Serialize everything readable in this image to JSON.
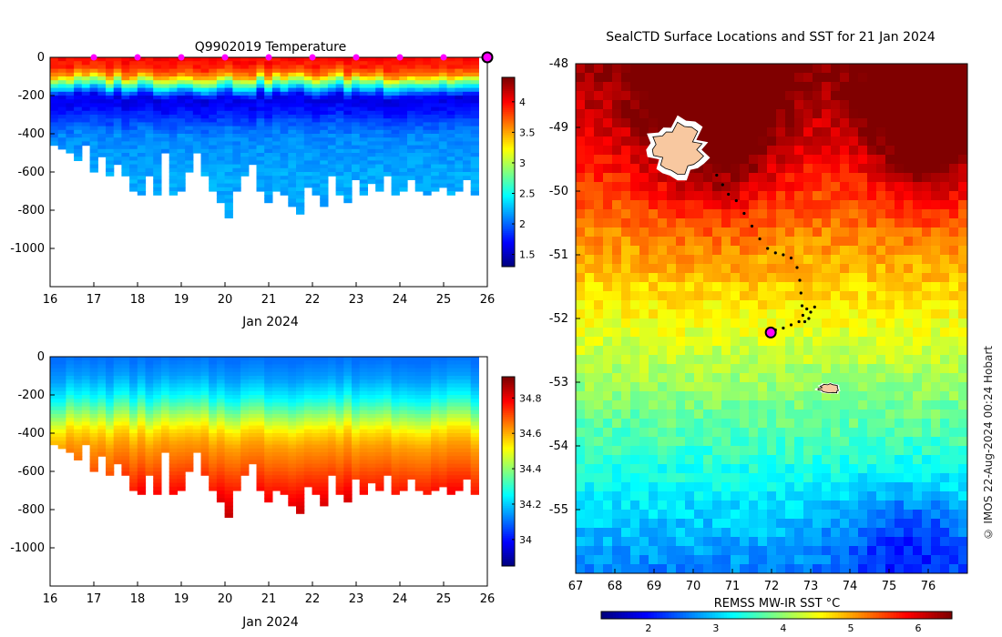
{
  "chart_data": [
    {
      "id": "temperature",
      "type": "heatmap",
      "title": "Q9902019  Temperature",
      "xlabel": "Jan 2024",
      "ylabel": "",
      "xlim": [
        16,
        26
      ],
      "ylim": [
        -1200,
        0
      ],
      "xticks": [
        "16",
        "17",
        "18",
        "19",
        "20",
        "21",
        "22",
        "23",
        "24",
        "25",
        "26"
      ],
      "yticks": [
        "0",
        "-200",
        "-400",
        "-600",
        "-800",
        "-1000"
      ],
      "colorbar": {
        "min": 1.3,
        "max": 4.4,
        "ticks": [
          "1.5",
          "2",
          "2.5",
          "3",
          "3.5",
          "4"
        ],
        "colormap": "jet"
      },
      "surface_markers_days": [
        17,
        18,
        19,
        20,
        21,
        22,
        23,
        24,
        25
      ],
      "latest_marker_day": 26,
      "profile_max_depth_m": [
        450,
        470,
        500,
        540,
        450,
        600,
        520,
        610,
        560,
        620,
        700,
        720,
        620,
        720,
        500,
        720,
        700,
        600,
        500,
        620,
        700,
        760,
        830,
        700,
        620,
        560,
        700,
        760,
        700,
        720,
        780,
        810,
        680,
        720,
        780,
        620,
        720,
        760,
        640,
        720,
        660,
        700,
        620,
        720,
        700,
        640,
        700,
        720,
        700,
        680,
        720,
        700,
        640,
        720
      ],
      "temperature_profile": {
        "depth_m": [
          0,
          40,
          80,
          110,
          140,
          170,
          200,
          260,
          320,
          400,
          600,
          800
        ],
        "temp_C": [
          4.0,
          3.9,
          3.6,
          3.0,
          2.5,
          2.0,
          1.6,
          1.7,
          1.9,
          2.1,
          2.2,
          2.2
        ]
      }
    },
    {
      "id": "salinity",
      "type": "heatmap",
      "title": "",
      "xlabel": "Jan 2024",
      "ylabel": "",
      "xlim": [
        16,
        26
      ],
      "ylim": [
        -1200,
        0
      ],
      "xticks": [
        "16",
        "17",
        "18",
        "19",
        "20",
        "21",
        "22",
        "23",
        "24",
        "25",
        "26"
      ],
      "yticks": [
        "0",
        "-200",
        "-400",
        "-600",
        "-800",
        "-1000"
      ],
      "colorbar": {
        "min": 33.85,
        "max": 34.92,
        "ticks": [
          "34",
          "34.2",
          "34.4",
          "34.6",
          "34.8"
        ],
        "colormap": "jet"
      },
      "salinity_profile": {
        "depth_m": [
          0,
          100,
          200,
          260,
          320,
          380,
          450,
          550,
          700,
          850
        ],
        "sal_psu": [
          34.1,
          34.15,
          34.25,
          34.35,
          34.45,
          34.55,
          34.62,
          34.68,
          34.78,
          34.88
        ]
      }
    },
    {
      "id": "sst_map",
      "type": "heatmap",
      "title": "SealCTD Surface Locations and SST for 21 Jan 2024",
      "xlabel": "",
      "ylabel": "",
      "xlim": [
        67,
        77
      ],
      "ylim": [
        -56,
        -48
      ],
      "xticks": [
        "67",
        "68",
        "69",
        "70",
        "71",
        "72",
        "73",
        "74",
        "75",
        "76"
      ],
      "yticks": [
        "-48",
        "-49",
        "-50",
        "-51",
        "-52",
        "-53",
        "-54",
        "-55"
      ],
      "colorbar": {
        "label": "REMSS MW-IR SST °C",
        "min": 1.3,
        "max": 6.5,
        "ticks": [
          "2",
          "3",
          "4",
          "5",
          "6"
        ],
        "colormap": "jet"
      },
      "track_points": [
        [
          70.6,
          -49.75
        ],
        [
          70.75,
          -49.9
        ],
        [
          70.9,
          -50.05
        ],
        [
          71.1,
          -50.15
        ],
        [
          71.3,
          -50.35
        ],
        [
          71.5,
          -50.55
        ],
        [
          71.7,
          -50.75
        ],
        [
          71.9,
          -50.9
        ],
        [
          72.1,
          -50.97
        ],
        [
          72.3,
          -51.0
        ],
        [
          72.5,
          -51.05
        ],
        [
          72.65,
          -51.2
        ],
        [
          72.72,
          -51.4
        ],
        [
          72.75,
          -51.6
        ],
        [
          72.78,
          -51.8
        ],
        [
          72.8,
          -51.95
        ],
        [
          72.9,
          -51.85
        ],
        [
          73.0,
          -51.9
        ],
        [
          73.1,
          -51.82
        ],
        [
          72.95,
          -52.0
        ],
        [
          72.85,
          -52.05
        ],
        [
          72.7,
          -52.05
        ],
        [
          72.5,
          -52.1
        ],
        [
          72.3,
          -52.15
        ],
        [
          72.1,
          -52.18
        ],
        [
          72.0,
          -52.22
        ]
      ],
      "latest_position": [
        71.98,
        -52.22
      ],
      "islands": [
        {
          "name": "Kerguelen",
          "lon": 69.6,
          "lat": -49.35
        },
        {
          "name": "Heard",
          "lon": 73.5,
          "lat": -53.1
        }
      ]
    }
  ],
  "watermark": "© IMOS 22-Aug-2024 00:24 Hobart"
}
